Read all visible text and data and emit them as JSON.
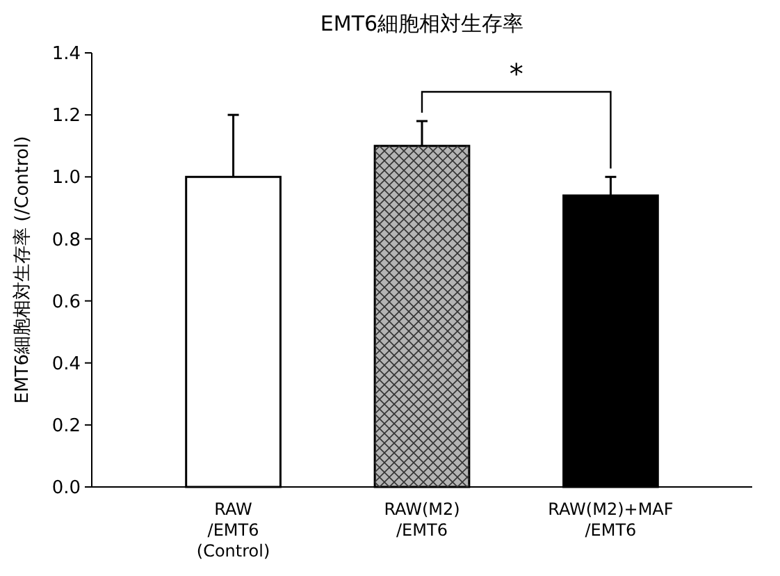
{
  "chart_data": {
    "type": "bar",
    "title": "EMT6細胞相対生存率",
    "ylabel": "EMT6細胞相対生存率 (/Control)",
    "categories": [
      "RAW\n/EMT6\n(Control)",
      "RAW(M2)\n/EMT6",
      "RAW(M2)+MAF\n/EMT6"
    ],
    "values": [
      1.0,
      1.1,
      0.94
    ],
    "colors": [
      "#ffffff",
      "#b4b4b4",
      "#000000"
    ],
    "errors": [
      [
        1.0,
        1.2
      ],
      [
        1.1,
        1.18
      ],
      [
        0.94,
        1.0
      ]
    ],
    "ylim": [
      0,
      1.4
    ],
    "yticks": [
      {
        "value": 0,
        "label": "0.0"
      },
      {
        "value": 0.2,
        "label": "0.2"
      },
      {
        "value": 0.4,
        "label": "0.4"
      },
      {
        "value": 0.6,
        "label": "0.6"
      },
      {
        "value": 0.8,
        "label": "0.8"
      },
      {
        "value": 1.0,
        "label": "1.0"
      },
      {
        "value": 1.2,
        "label": "1.2"
      },
      {
        "value": 1.4,
        "label": "1.4"
      }
    ],
    "annotations": [
      "*"
    ]
  }
}
